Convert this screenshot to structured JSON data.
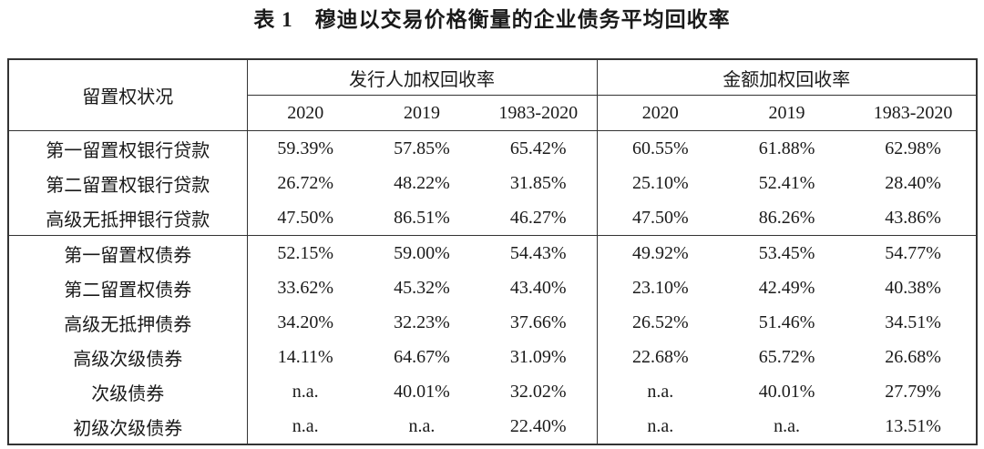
{
  "title": "表 1　穆迪以交易价格衡量的企业债务平均回收率",
  "table": {
    "row_header": "留置权状况",
    "groups": [
      {
        "label": "发行人加权回收率",
        "years": [
          "2020",
          "2019",
          "1983-2020"
        ]
      },
      {
        "label": "金额加权回收率",
        "years": [
          "2020",
          "2019",
          "1983-2020"
        ]
      }
    ],
    "na_text": "n.a.",
    "sections": [
      {
        "rows": [
          {
            "label": "第一留置权银行贷款",
            "values": [
              "59.39%",
              "57.85%",
              "65.42%",
              "60.55%",
              "61.88%",
              "62.98%"
            ]
          },
          {
            "label": "第二留置权银行贷款",
            "values": [
              "26.72%",
              "48.22%",
              "31.85%",
              "25.10%",
              "52.41%",
              "28.40%"
            ]
          },
          {
            "label": "高级无抵押银行贷款",
            "values": [
              "47.50%",
              "86.51%",
              "46.27%",
              "47.50%",
              "86.26%",
              "43.86%"
            ]
          }
        ]
      },
      {
        "rows": [
          {
            "label": "第一留置权债券",
            "values": [
              "52.15%",
              "59.00%",
              "54.43%",
              "49.92%",
              "53.45%",
              "54.77%"
            ]
          },
          {
            "label": "第二留置权债券",
            "values": [
              "33.62%",
              "45.32%",
              "43.40%",
              "23.10%",
              "42.49%",
              "40.38%"
            ]
          },
          {
            "label": "高级无抵押债券",
            "values": [
              "34.20%",
              "32.23%",
              "37.66%",
              "26.52%",
              "51.46%",
              "34.51%"
            ]
          },
          {
            "label": "高级次级债券",
            "values": [
              "14.11%",
              "64.67%",
              "31.09%",
              "22.68%",
              "65.72%",
              "26.68%"
            ]
          },
          {
            "label": "次级债券",
            "values": [
              "n.a.",
              "40.01%",
              "32.02%",
              "n.a.",
              "40.01%",
              "27.79%"
            ]
          },
          {
            "label": "初级次级债券",
            "values": [
              "n.a.",
              "n.a.",
              "22.40%",
              "n.a.",
              "n.a.",
              "13.51%"
            ]
          }
        ]
      }
    ]
  }
}
